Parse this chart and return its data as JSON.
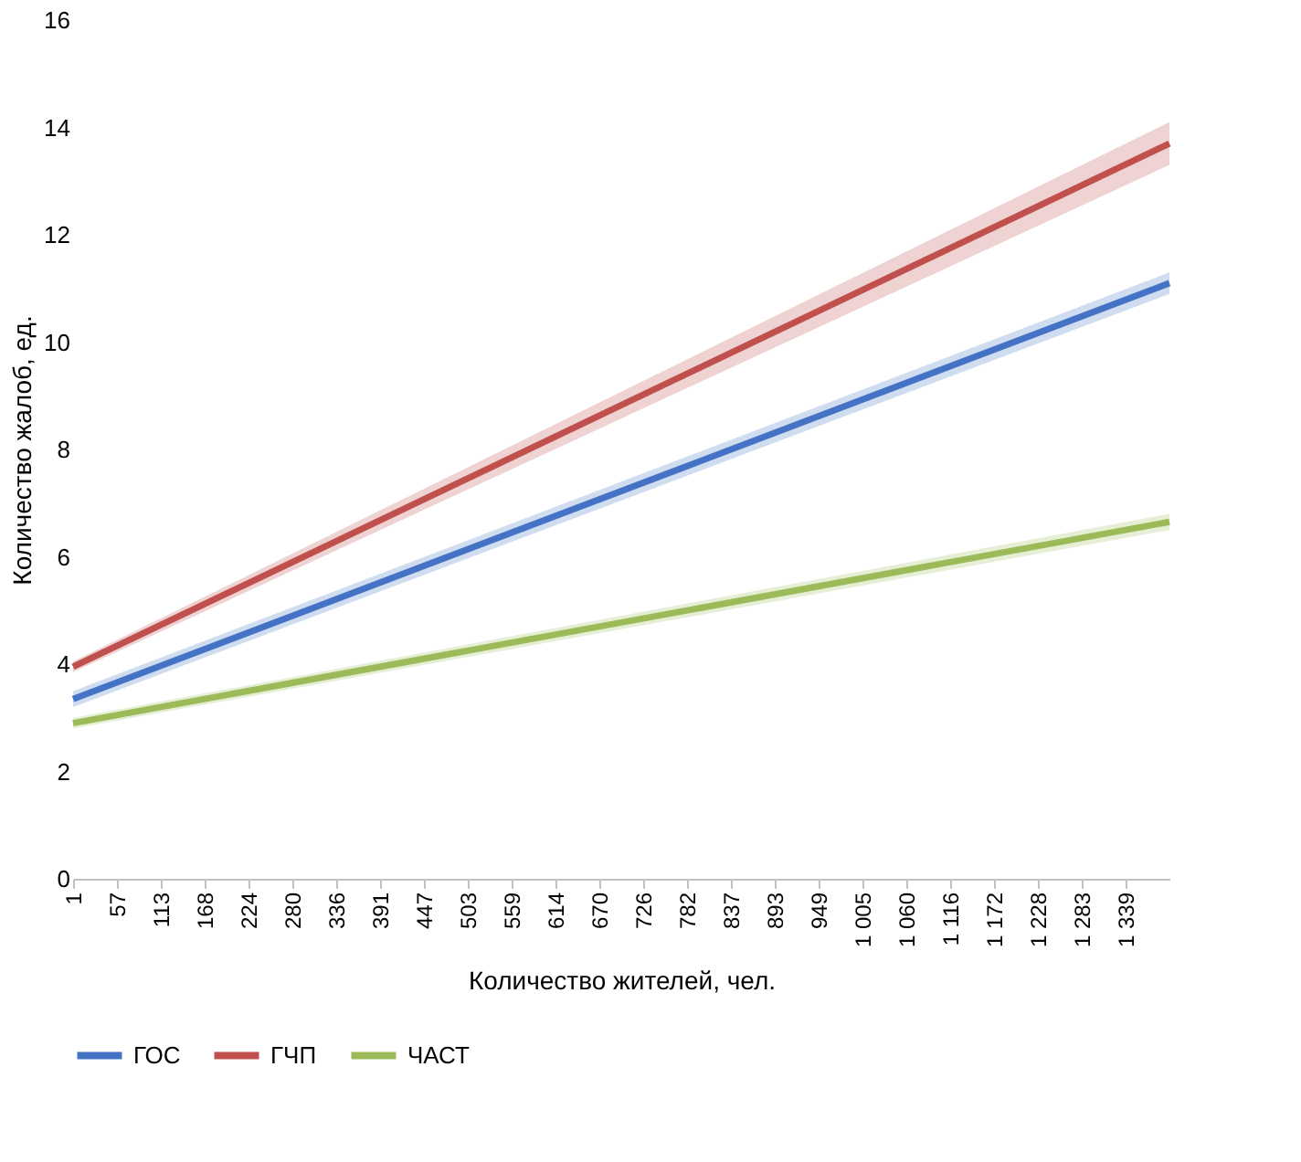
{
  "chart_data": {
    "type": "line",
    "xlabel": "Количество жителей, чел.",
    "ylabel": "Количество жалоб, ед.",
    "xlim": [
      1,
      1395
    ],
    "ylim": [
      0,
      16
    ],
    "yticks": [
      0,
      2,
      4,
      6,
      8,
      10,
      12,
      14,
      16
    ],
    "xticks": [
      1,
      57,
      113,
      168,
      224,
      280,
      336,
      391,
      447,
      503,
      559,
      614,
      670,
      726,
      782,
      837,
      893,
      949,
      {
        "value": 1005,
        "label": "1 005"
      },
      {
        "value": 1060,
        "label": "1 060"
      },
      {
        "value": 1116,
        "label": "1 116"
      },
      {
        "value": 1172,
        "label": "1 172"
      },
      {
        "value": 1228,
        "label": "1 228"
      },
      {
        "value": 1283,
        "label": "1 283"
      },
      {
        "value": 1339,
        "label": "1 339"
      }
    ],
    "x": [
      1,
      1395
    ],
    "grid": false,
    "legend": "bottom",
    "line_style": "solid",
    "marker": "none",
    "series": [
      {
        "name": "ГОС",
        "color": "#4472c4",
        "values": [
          3.35,
          11.1
        ],
        "lower": [
          3.2,
          10.9
        ],
        "upper": [
          3.5,
          11.3
        ]
      },
      {
        "name": "ГЧП",
        "color": "#c0504d",
        "values": [
          3.95,
          13.7
        ],
        "lower": [
          3.85,
          13.3
        ],
        "upper": [
          4.05,
          14.1
        ]
      },
      {
        "name": "ЧАСТ",
        "color": "#9bbb59",
        "values": [
          2.9,
          6.65
        ],
        "lower": [
          2.8,
          6.5
        ],
        "upper": [
          3.0,
          6.8
        ]
      }
    ]
  }
}
